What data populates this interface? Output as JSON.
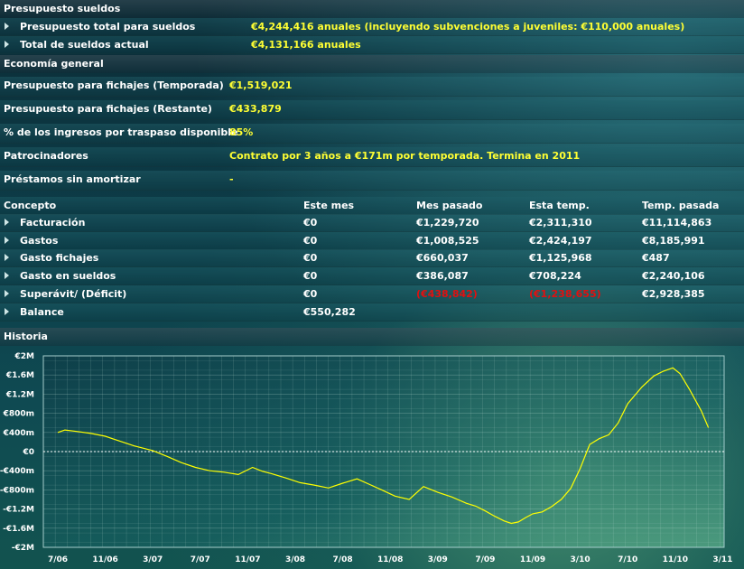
{
  "budget": {
    "header": "Presupuesto sueldos",
    "rows": [
      {
        "label": "Presupuesto total para sueldos",
        "value": "€4,244,416 anuales (incluyendo subvenciones a juveniles: €110,000 anuales)"
      },
      {
        "label": "Total de sueldos actual",
        "value": "€4,131,166 anuales"
      }
    ]
  },
  "economy": {
    "header": "Economía general",
    "rows": [
      {
        "label": "Presupuesto para fichajes (Temporada)",
        "value": "€1,519,021"
      },
      {
        "label": "Presupuesto para fichajes (Restante)",
        "value": "€433,879"
      },
      {
        "label": "% de los ingresos por traspaso disponible",
        "value": "85%"
      },
      {
        "label": "Patrocinadores",
        "value": "Contrato por 3 años a €171m por temporada. Termina en 2011"
      },
      {
        "label": "Préstamos sin amortizar",
        "value": "-"
      }
    ]
  },
  "table": {
    "headers": [
      "Concepto",
      "Este mes",
      "Mes pasado",
      "Esta temp.",
      "Temp. pasada"
    ],
    "rows": [
      {
        "label": "Facturación",
        "cells": [
          "€0",
          "€1,229,720",
          "€2,311,310",
          "€11,114,863"
        ]
      },
      {
        "label": "Gastos",
        "cells": [
          "€0",
          "€1,008,525",
          "€2,424,197",
          "€8,185,991"
        ]
      },
      {
        "label": "Gasto fichajes",
        "cells": [
          "€0",
          "€660,037",
          "€1,125,968",
          "€487"
        ]
      },
      {
        "label": "Gasto en sueldos",
        "cells": [
          "€0",
          "€386,087",
          "€708,224",
          "€2,240,106"
        ]
      },
      {
        "label": "Superávit/ (Déficit)",
        "cells": [
          "€0",
          "(€438,842)",
          "(€1,238,655)",
          "€2,928,385"
        ]
      },
      {
        "label": "Balance",
        "cells": [
          "€550,282",
          "",
          "",
          ""
        ]
      }
    ],
    "negative_color": "#e01010"
  },
  "history": {
    "header": "Historia",
    "line_color": "#ffff00"
  },
  "chart_data": {
    "type": "line",
    "title": "Historia",
    "y_ticks": [
      "€2M",
      "€1.6M",
      "€1.2M",
      "€800m",
      "€400m",
      "€0",
      "-€400m",
      "-€800m",
      "-€1.2M",
      "-€1.6M",
      "-€2M"
    ],
    "x_ticks": [
      "7/06",
      "11/06",
      "3/07",
      "7/07",
      "11/07",
      "3/08",
      "7/08",
      "11/08",
      "3/09",
      "7/09",
      "11/09",
      "3/10",
      "7/10",
      "11/10",
      "3/11"
    ],
    "ylim": [
      -2000000,
      2000000
    ],
    "grid": true,
    "series": [
      {
        "x": [
          0,
          0.15,
          0.4,
          0.7,
          1.0,
          1.3,
          1.6,
          2.0,
          2.3,
          2.6,
          2.9,
          3.2,
          3.5,
          3.8,
          4.1,
          4.3,
          4.5,
          4.8,
          5.1,
          5.4,
          5.7,
          6.0,
          6.3,
          6.55,
          6.8,
          7.1,
          7.4,
          7.7,
          8.0,
          8.3,
          8.6,
          8.8,
          9.0,
          9.2,
          9.4,
          9.55,
          9.7,
          9.85,
          10.0,
          10.2,
          10.4,
          10.6,
          10.8,
          11.0,
          11.2,
          11.4,
          11.6,
          11.8,
          12.0,
          12.3,
          12.55,
          12.75,
          12.95,
          13.1,
          13.3,
          13.55,
          13.7
        ],
        "values": [
          400000,
          450000,
          420000,
          380000,
          320000,
          220000,
          120000,
          20000,
          -100000,
          -230000,
          -330000,
          -400000,
          -430000,
          -480000,
          -330000,
          -410000,
          -460000,
          -550000,
          -650000,
          -700000,
          -760000,
          -660000,
          -570000,
          -680000,
          -790000,
          -930000,
          -1000000,
          -730000,
          -850000,
          -950000,
          -1080000,
          -1140000,
          -1240000,
          -1350000,
          -1450000,
          -1500000,
          -1470000,
          -1380000,
          -1300000,
          -1260000,
          -1150000,
          -1000000,
          -770000,
          -350000,
          150000,
          270000,
          350000,
          600000,
          1000000,
          1350000,
          1580000,
          1680000,
          1750000,
          1630000,
          1300000,
          850000,
          500000
        ]
      }
    ]
  }
}
